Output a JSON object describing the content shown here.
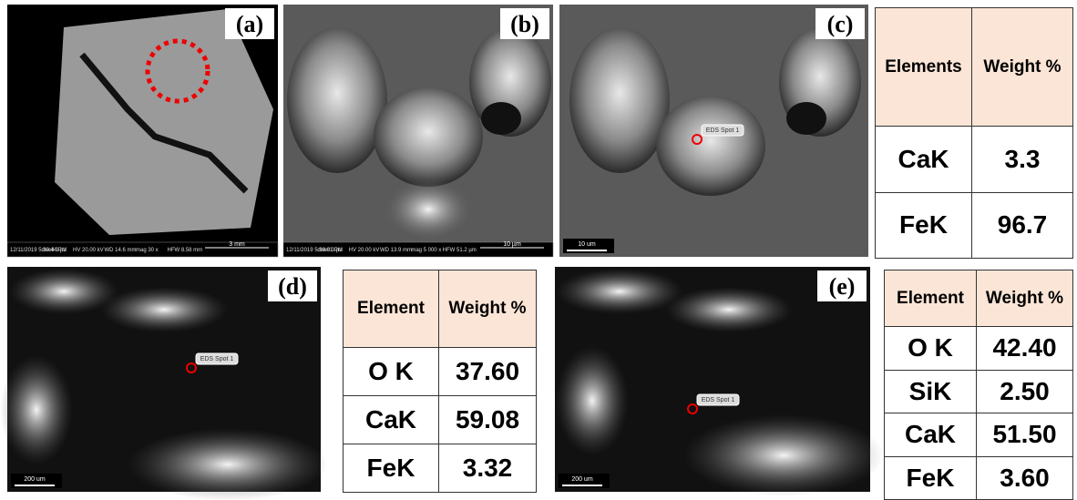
{
  "panels": [
    {
      "label": "(a)",
      "info": [
        "12/11/2019 5:30:44 PM",
        "dwell 3 µs",
        "HV 20.00 kV",
        "WD 14.6 mm",
        "mag 30 x",
        "HFW 8.58 mm"
      ],
      "scale": "3 mm"
    },
    {
      "label": "(b)",
      "info": [
        "12/11/2019 5:39:01 PM",
        "dwell 3 µs",
        "HV 20.00 kV",
        "WD 13.9 mm",
        "mag 5 000 x",
        "HFW 51.2 µm"
      ],
      "scale": "10 µm"
    },
    {
      "label": "(c)",
      "spot": "EDS Spot 1",
      "scale": "10 um"
    },
    {
      "label": "(d)",
      "spot": "EDS Spot 1",
      "scale": "200 um"
    },
    {
      "label": "(e)",
      "spot": "EDS Spot 1",
      "scale": "200 um"
    }
  ],
  "tables": [
    {
      "header": [
        "Elements",
        "Weight %"
      ],
      "rows": [
        [
          "CaK",
          "3.3"
        ],
        [
          "FeK",
          "96.7"
        ]
      ]
    },
    {
      "header": [
        "Element",
        "Weight %"
      ],
      "rows": [
        [
          "O K",
          "37.60"
        ],
        [
          "CaK",
          "59.08"
        ],
        [
          "FeK",
          "3.32"
        ]
      ]
    },
    {
      "header": [
        "Element",
        "Weight %"
      ],
      "rows": [
        [
          "O K",
          "42.40"
        ],
        [
          "SiK",
          "2.50"
        ],
        [
          "CaK",
          "51.50"
        ],
        [
          "FeK",
          "3.60"
        ]
      ]
    }
  ]
}
